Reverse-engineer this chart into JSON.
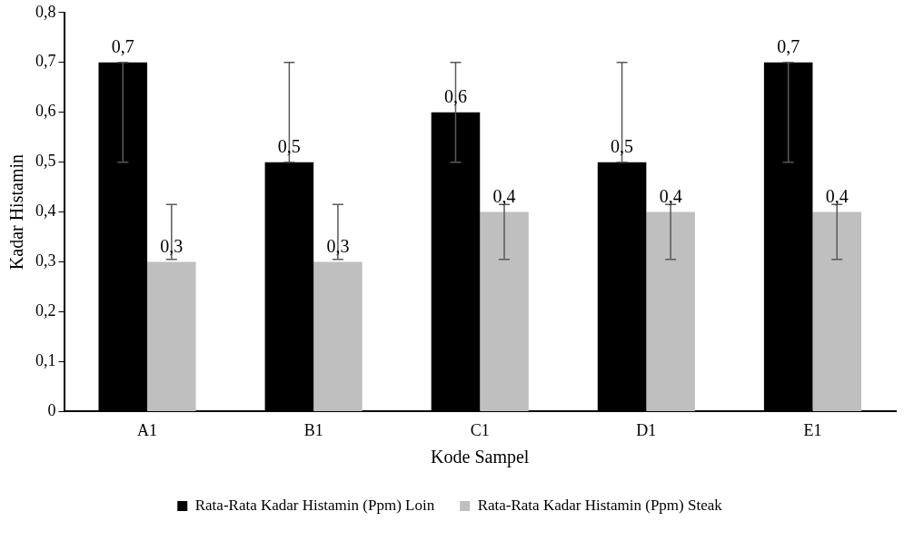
{
  "chart_data": {
    "type": "bar",
    "xlabel": "Kode Sampel",
    "ylabel": "Kadar Histamin",
    "categories": [
      "A1",
      "B1",
      "C1",
      "D1",
      "E1"
    ],
    "series": [
      {
        "name": "Rata-Rata Kadar Histamin (Ppm) Loin",
        "color": "#000000",
        "values": [
          0.7,
          0.5,
          0.6,
          0.5,
          0.7
        ],
        "value_labels": [
          "0,7",
          "0,5",
          "0,6",
          "0,5",
          "0,7"
        ],
        "errors": [
          [
            0.5,
            0.7
          ],
          [
            0.5,
            0.7
          ],
          [
            0.5,
            0.7
          ],
          [
            0.5,
            0.7
          ],
          [
            0.5,
            0.7
          ]
        ]
      },
      {
        "name": "Rata-Rata Kadar Histamin (Ppm) Steak",
        "color": "#bfbfbf",
        "values": [
          0.3,
          0.3,
          0.4,
          0.4,
          0.4
        ],
        "value_labels": [
          "0,3",
          "0,3",
          "0,4",
          "0,4",
          "0,4"
        ],
        "errors": [
          [
            0.305,
            0.415
          ],
          [
            0.305,
            0.415
          ],
          [
            0.305,
            0.415
          ],
          [
            0.305,
            0.415
          ],
          [
            0.305,
            0.415
          ]
        ]
      }
    ],
    "ylim": [
      0,
      0.8
    ],
    "yticks": [
      {
        "value": 0,
        "label": "0"
      },
      {
        "value": 0.1,
        "label": "0,1"
      },
      {
        "value": 0.2,
        "label": "0,2"
      },
      {
        "value": 0.3,
        "label": "0,3"
      },
      {
        "value": 0.4,
        "label": "0,4"
      },
      {
        "value": 0.5,
        "label": "0,5"
      },
      {
        "value": 0.6,
        "label": "0,6"
      },
      {
        "value": 0.7,
        "label": "0,7"
      },
      {
        "value": 0.8,
        "label": "0,8"
      }
    ],
    "grid": false,
    "legend": "bottom"
  }
}
